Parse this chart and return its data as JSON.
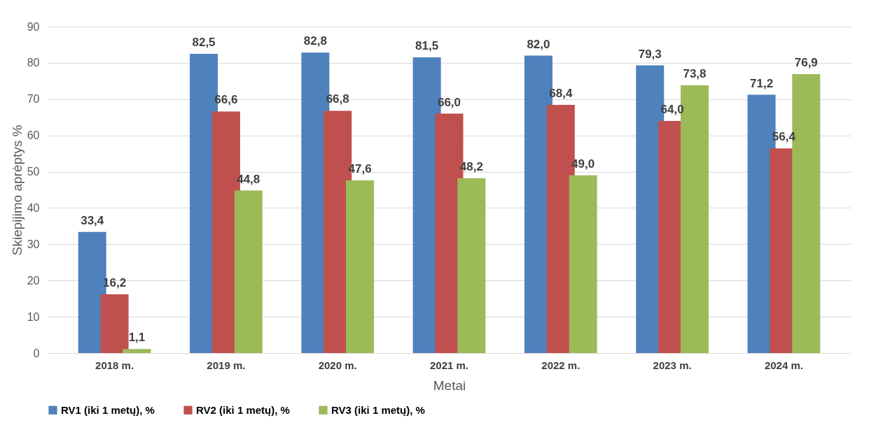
{
  "chart_data": {
    "type": "bar",
    "xlabel": "Metai",
    "ylabel": "Skiepijimo aprėptys %",
    "categories": [
      "2018 m.",
      "2019 m.",
      "2020 m.",
      "2021 m.",
      "2022 m.",
      "2023 m.",
      "2024 m."
    ],
    "series": [
      {
        "name": "RV1 (iki 1 metų), %",
        "color": "#4f81bd",
        "values": [
          33.4,
          82.5,
          82.8,
          81.5,
          82.0,
          79.3,
          71.2
        ],
        "value_labels": [
          "33,4",
          "82,5",
          "82,8",
          "81,5",
          "82,0",
          "79,3",
          "71,2"
        ]
      },
      {
        "name": "RV2 (iki 1 metų), %",
        "color": "#c0504d",
        "values": [
          16.2,
          66.6,
          66.8,
          66.0,
          68.4,
          64.0,
          56.4
        ],
        "value_labels": [
          "16,2",
          "66,6",
          "66,8",
          "66,0",
          "68,4",
          "64,0",
          "56,4"
        ]
      },
      {
        "name": "RV3 (iki 1 metų), %",
        "color": "#9bbb59",
        "values": [
          1.1,
          44.8,
          47.6,
          48.2,
          49.0,
          73.8,
          76.9
        ],
        "value_labels": [
          "1,1",
          "44,8",
          "47,6",
          "48,2",
          "49,0",
          "73,8",
          "76,9"
        ]
      }
    ],
    "ylim": [
      0,
      90
    ],
    "yticks": [
      0,
      10,
      20,
      30,
      40,
      50,
      60,
      70,
      80,
      90
    ],
    "grid": "y",
    "legend": "bottom"
  }
}
